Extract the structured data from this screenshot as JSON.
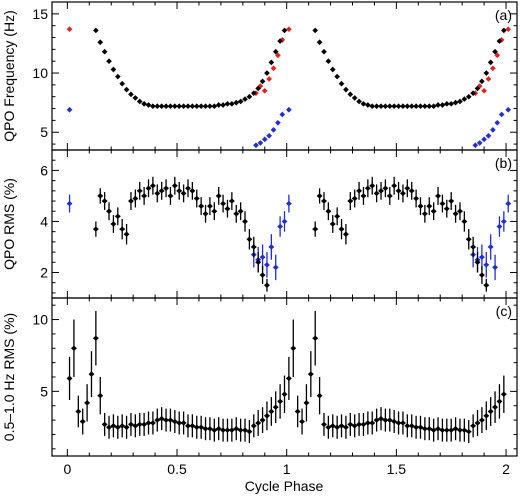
{
  "chart_data": {
    "type": "scatter",
    "xlabel": "Cycle Phase",
    "xlim": [
      -0.07,
      2.05
    ],
    "xticks": [
      "0",
      "0.5",
      "1",
      "1.5",
      "2"
    ],
    "colors": {
      "black": "#000000",
      "red": "#e8201c",
      "blue": "#1f2fd0"
    },
    "panels": [
      {
        "label": "(a)",
        "ylabel": "QPO Frequency (Hz)",
        "ylim": [
          3.5,
          16
        ],
        "yticks": [
          5,
          10,
          15
        ],
        "series": [
          {
            "color": "red",
            "err": false,
            "x": [
              0.01,
              0.86,
              0.88,
              0.9,
              0.92,
              0.94,
              0.96,
              0.98,
              1.01,
              1.86,
              1.88,
              1.9,
              1.92,
              1.94,
              1.96,
              1.98,
              2.01
            ],
            "y": [
              13.7,
              8.3,
              8.9,
              8.5,
              9.5,
              10.4,
              11.5,
              12.8,
              13.7,
              8.3,
              8.9,
              8.5,
              9.5,
              10.4,
              11.5,
              12.8,
              13.7
            ]
          },
          {
            "color": "blue",
            "err": false,
            "x": [
              0.01,
              0.86,
              0.88,
              0.9,
              0.92,
              0.94,
              0.96,
              0.98,
              1.01,
              1.86,
              1.88,
              1.9,
              1.92,
              1.94,
              1.96,
              1.98,
              2.01
            ],
            "y": [
              6.9,
              3.9,
              4.1,
              4.4,
              4.7,
              5.2,
              5.8,
              6.5,
              6.9,
              3.9,
              4.1,
              4.4,
              4.7,
              5.2,
              5.8,
              6.5,
              6.9
            ]
          },
          {
            "color": "black",
            "err": false,
            "x": [
              0.13,
              0.15,
              0.17,
              0.19,
              0.21,
              0.23,
              0.25,
              0.27,
              0.29,
              0.31,
              0.33,
              0.35,
              0.37,
              0.39,
              0.41,
              0.43,
              0.45,
              0.47,
              0.49,
              0.51,
              0.53,
              0.55,
              0.57,
              0.59,
              0.61,
              0.63,
              0.65,
              0.67,
              0.69,
              0.71,
              0.73,
              0.75,
              0.77,
              0.79,
              0.81,
              0.83,
              0.85,
              0.87,
              0.89,
              0.91,
              0.93,
              0.95,
              0.97,
              0.99,
              1.13,
              1.15,
              1.17,
              1.19,
              1.21,
              1.23,
              1.25,
              1.27,
              1.29,
              1.31,
              1.33,
              1.35,
              1.37,
              1.39,
              1.41,
              1.43,
              1.45,
              1.47,
              1.49,
              1.51,
              1.53,
              1.55,
              1.57,
              1.59,
              1.61,
              1.63,
              1.65,
              1.67,
              1.69,
              1.71,
              1.73,
              1.75,
              1.77,
              1.79,
              1.81,
              1.83,
              1.85,
              1.87,
              1.89,
              1.91,
              1.93,
              1.95,
              1.97,
              1.99
            ],
            "y": [
              13.6,
              12.6,
              11.8,
              11.0,
              10.3,
              9.7,
              9.1,
              8.6,
              8.2,
              7.9,
              7.6,
              7.4,
              7.3,
              7.2,
              7.2,
              7.2,
              7.2,
              7.2,
              7.2,
              7.2,
              7.2,
              7.2,
              7.2,
              7.2,
              7.2,
              7.2,
              7.2,
              7.2,
              7.3,
              7.3,
              7.4,
              7.4,
              7.5,
              7.6,
              7.8,
              8.0,
              8.3,
              8.7,
              9.3,
              10.0,
              10.9,
              11.8,
              12.7,
              13.6,
              13.6,
              12.6,
              11.8,
              11.0,
              10.3,
              9.7,
              9.1,
              8.6,
              8.2,
              7.9,
              7.6,
              7.4,
              7.3,
              7.2,
              7.2,
              7.2,
              7.2,
              7.2,
              7.2,
              7.2,
              7.2,
              7.2,
              7.2,
              7.2,
              7.2,
              7.2,
              7.2,
              7.2,
              7.3,
              7.3,
              7.4,
              7.4,
              7.5,
              7.6,
              7.8,
              8.0,
              8.3,
              8.7,
              9.3,
              10.0,
              10.9,
              11.8,
              12.7,
              13.6
            ]
          }
        ]
      },
      {
        "label": "(b)",
        "ylabel": "QPO RMS (%)",
        "ylim": [
          1,
          6.8
        ],
        "yticks": [
          2,
          4,
          6
        ],
        "series": [
          {
            "color": "blue",
            "err": true,
            "x": [
              0.01,
              0.85,
              0.87,
              0.89,
              0.91,
              0.93,
              0.95,
              0.97,
              0.99,
              1.01,
              1.85,
              1.87,
              1.89,
              1.91,
              1.93,
              1.95,
              1.97,
              1.99,
              2.01
            ],
            "y": [
              4.7,
              2.7,
              2.5,
              2.6,
              2.3,
              3.0,
              2.2,
              3.8,
              4.0,
              4.7,
              2.7,
              2.5,
              2.6,
              2.3,
              3.0,
              2.2,
              3.8,
              4.0,
              4.7
            ],
            "yerr": [
              0.35,
              0.5,
              0.5,
              0.5,
              0.5,
              0.5,
              0.5,
              0.4,
              0.4,
              0.35,
              0.5,
              0.5,
              0.5,
              0.5,
              0.5,
              0.5,
              0.4,
              0.4,
              0.35
            ]
          },
          {
            "color": "black",
            "err": true,
            "x": [
              0.13,
              0.15,
              0.17,
              0.19,
              0.21,
              0.23,
              0.25,
              0.27,
              0.29,
              0.31,
              0.33,
              0.35,
              0.37,
              0.39,
              0.41,
              0.43,
              0.45,
              0.47,
              0.49,
              0.51,
              0.53,
              0.55,
              0.57,
              0.59,
              0.61,
              0.63,
              0.65,
              0.67,
              0.69,
              0.71,
              0.73,
              0.75,
              0.77,
              0.79,
              0.81,
              0.83,
              0.85,
              0.87,
              0.89,
              0.91,
              1.13,
              1.15,
              1.17,
              1.19,
              1.21,
              1.23,
              1.25,
              1.27,
              1.29,
              1.31,
              1.33,
              1.35,
              1.37,
              1.39,
              1.41,
              1.43,
              1.45,
              1.47,
              1.49,
              1.51,
              1.53,
              1.55,
              1.57,
              1.59,
              1.61,
              1.63,
              1.65,
              1.67,
              1.69,
              1.71,
              1.73,
              1.75,
              1.77,
              1.79,
              1.81,
              1.83,
              1.85,
              1.87,
              1.89,
              1.91
            ],
            "y": [
              3.7,
              5.0,
              4.8,
              4.4,
              3.9,
              4.2,
              3.7,
              3.5,
              4.8,
              4.9,
              5.2,
              5.0,
              5.3,
              5.4,
              5.1,
              5.2,
              5.3,
              5.0,
              5.4,
              5.2,
              5.1,
              5.3,
              5.2,
              4.9,
              4.6,
              4.3,
              4.6,
              4.4,
              5.0,
              4.7,
              4.5,
              4.8,
              4.3,
              4.4,
              4.0,
              3.3,
              3.0,
              2.4,
              1.9,
              1.5,
              3.7,
              5.0,
              4.8,
              4.4,
              3.9,
              4.2,
              3.7,
              3.5,
              4.8,
              4.9,
              5.2,
              5.0,
              5.3,
              5.4,
              5.1,
              5.2,
              5.3,
              5.0,
              5.4,
              5.2,
              5.1,
              5.3,
              5.2,
              4.9,
              4.6,
              4.3,
              4.6,
              4.4,
              5.0,
              4.7,
              4.5,
              4.8,
              4.3,
              4.4,
              4.0,
              3.3,
              3.0,
              2.4,
              1.9,
              1.5
            ],
            "yerr": [
              0.3,
              0.3,
              0.35,
              0.35,
              0.35,
              0.35,
              0.4,
              0.4,
              0.35,
              0.35,
              0.35,
              0.35,
              0.35,
              0.35,
              0.35,
              0.35,
              0.35,
              0.35,
              0.35,
              0.35,
              0.35,
              0.35,
              0.35,
              0.35,
              0.35,
              0.35,
              0.35,
              0.35,
              0.35,
              0.35,
              0.35,
              0.35,
              0.35,
              0.35,
              0.4,
              0.4,
              0.4,
              0.4,
              0.35,
              0.25,
              0.3,
              0.3,
              0.35,
              0.35,
              0.35,
              0.35,
              0.4,
              0.4,
              0.35,
              0.35,
              0.35,
              0.35,
              0.35,
              0.35,
              0.35,
              0.35,
              0.35,
              0.35,
              0.35,
              0.35,
              0.35,
              0.35,
              0.35,
              0.35,
              0.35,
              0.35,
              0.35,
              0.35,
              0.35,
              0.35,
              0.35,
              0.35,
              0.35,
              0.35,
              0.4,
              0.4,
              0.4,
              0.4,
              0.35,
              0.25
            ]
          }
        ]
      },
      {
        "label": "(c)",
        "ylabel": "0.5–1.0 Hz RMS (%)",
        "ylim": [
          0.5,
          11.5
        ],
        "yticks": [
          5,
          10
        ],
        "series": [
          {
            "color": "black",
            "err": true,
            "x": [
              0.01,
              0.03,
              0.05,
              0.07,
              0.09,
              0.11,
              0.13,
              0.15,
              0.17,
              0.19,
              0.21,
              0.23,
              0.25,
              0.27,
              0.29,
              0.31,
              0.33,
              0.35,
              0.37,
              0.39,
              0.41,
              0.43,
              0.45,
              0.47,
              0.49,
              0.51,
              0.53,
              0.55,
              0.57,
              0.59,
              0.61,
              0.63,
              0.65,
              0.67,
              0.69,
              0.71,
              0.73,
              0.75,
              0.77,
              0.79,
              0.81,
              0.83,
              0.85,
              0.87,
              0.89,
              0.91,
              0.93,
              0.95,
              0.97,
              0.99,
              1.01,
              1.03,
              1.05,
              1.07,
              1.09,
              1.11,
              1.13,
              1.15,
              1.17,
              1.19,
              1.21,
              1.23,
              1.25,
              1.27,
              1.29,
              1.31,
              1.33,
              1.35,
              1.37,
              1.39,
              1.41,
              1.43,
              1.45,
              1.47,
              1.49,
              1.51,
              1.53,
              1.55,
              1.57,
              1.59,
              1.61,
              1.63,
              1.65,
              1.67,
              1.69,
              1.71,
              1.73,
              1.75,
              1.77,
              1.79,
              1.81,
              1.83,
              1.85,
              1.87,
              1.89,
              1.91,
              1.93,
              1.95,
              1.97,
              1.99
            ],
            "y": [
              5.9,
              8.0,
              3.6,
              2.9,
              4.2,
              6.2,
              8.7,
              4.7,
              2.7,
              2.5,
              2.6,
              2.5,
              2.6,
              2.5,
              2.7,
              2.6,
              2.7,
              2.7,
              2.8,
              2.8,
              3.0,
              3.1,
              3.0,
              3.0,
              2.9,
              2.8,
              2.8,
              2.6,
              2.6,
              2.5,
              2.5,
              2.4,
              2.4,
              2.3,
              2.4,
              2.3,
              2.3,
              2.3,
              2.4,
              2.3,
              2.3,
              2.2,
              2.6,
              2.8,
              3.0,
              3.3,
              3.6,
              3.9,
              4.3,
              4.8,
              5.9,
              8.0,
              3.6,
              2.9,
              4.2,
              6.2,
              8.7,
              4.7,
              2.7,
              2.5,
              2.6,
              2.5,
              2.6,
              2.5,
              2.7,
              2.6,
              2.7,
              2.7,
              2.8,
              2.8,
              3.0,
              3.1,
              3.0,
              3.0,
              2.9,
              2.8,
              2.8,
              2.6,
              2.6,
              2.5,
              2.5,
              2.4,
              2.4,
              2.3,
              2.4,
              2.3,
              2.3,
              2.3,
              2.4,
              2.3,
              2.3,
              2.2,
              2.6,
              2.8,
              3.0,
              3.3,
              3.6,
              3.9,
              4.3,
              4.8
            ],
            "yerr": [
              1.5,
              2.0,
              1.1,
              0.9,
              1.3,
              1.6,
              1.9,
              1.3,
              0.8,
              0.8,
              0.8,
              0.8,
              0.8,
              0.8,
              0.8,
              0.8,
              0.8,
              0.8,
              0.8,
              0.8,
              0.8,
              0.8,
              0.8,
              0.8,
              0.8,
              0.8,
              0.8,
              0.8,
              0.8,
              0.8,
              0.8,
              0.8,
              0.8,
              0.8,
              0.8,
              0.8,
              0.8,
              0.8,
              0.8,
              0.8,
              0.8,
              0.8,
              0.8,
              0.9,
              0.9,
              1.0,
              1.0,
              1.1,
              1.2,
              1.3,
              1.5,
              2.0,
              1.1,
              0.9,
              1.3,
              1.6,
              1.9,
              1.3,
              0.8,
              0.8,
              0.8,
              0.8,
              0.8,
              0.8,
              0.8,
              0.8,
              0.8,
              0.8,
              0.8,
              0.8,
              0.8,
              0.8,
              0.8,
              0.8,
              0.8,
              0.8,
              0.8,
              0.8,
              0.8,
              0.8,
              0.8,
              0.8,
              0.8,
              0.8,
              0.8,
              0.8,
              0.8,
              0.8,
              0.8,
              0.8,
              0.8,
              0.8,
              0.8,
              0.9,
              0.9,
              1.0,
              1.0,
              1.1,
              1.2,
              1.3
            ]
          }
        ]
      }
    ]
  }
}
